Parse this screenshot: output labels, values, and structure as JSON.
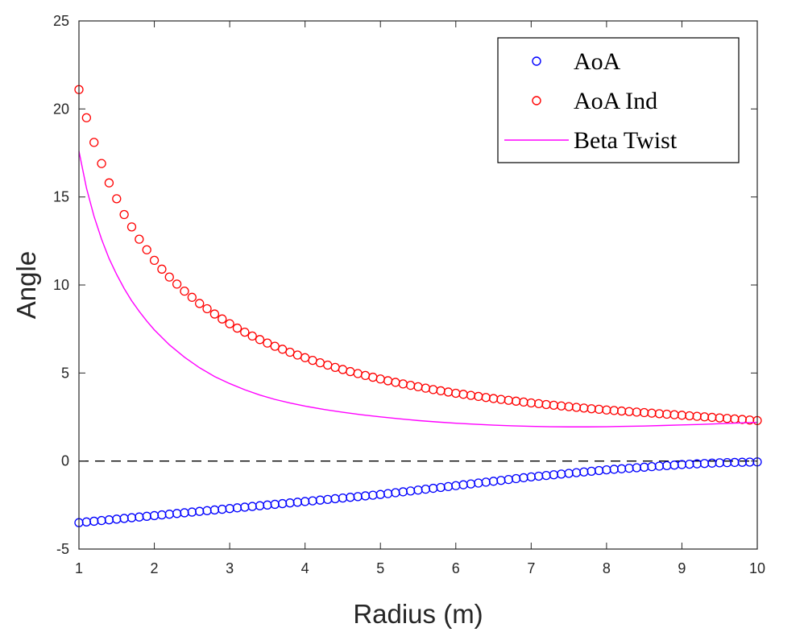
{
  "chart_data": {
    "type": "scatter",
    "title": "",
    "xlabel": "Radius (m)",
    "ylabel": "Angle",
    "xlim": [
      1,
      10
    ],
    "ylim": [
      -5,
      25
    ],
    "xticks": [
      1,
      2,
      3,
      4,
      5,
      6,
      7,
      8,
      9,
      10
    ],
    "yticks": [
      -5,
      0,
      5,
      10,
      15,
      20,
      25
    ],
    "xtick_labels": [
      "1",
      "2",
      "3",
      "4",
      "5",
      "6",
      "7",
      "8",
      "9",
      "10"
    ],
    "ytick_labels": [
      "-5",
      "0",
      "5",
      "10",
      "15",
      "20",
      "25"
    ],
    "grid": false,
    "legend_position": "top-right",
    "reference_line": {
      "y": 0,
      "style": "dashed",
      "color": "#000000"
    },
    "series": [
      {
        "name": "AoA",
        "kind": "scatter",
        "marker": "circle",
        "color": "#0000ff",
        "x": [
          1.0,
          1.1,
          1.2,
          1.3,
          1.4,
          1.5,
          1.6,
          1.7,
          1.8,
          1.9,
          2.0,
          2.1,
          2.2,
          2.3,
          2.4,
          2.5,
          2.6,
          2.7,
          2.8,
          2.9,
          3.0,
          3.1,
          3.2,
          3.3,
          3.4,
          3.5,
          3.6,
          3.7,
          3.8,
          3.9,
          4.0,
          4.1,
          4.2,
          4.3,
          4.4,
          4.5,
          4.6,
          4.7,
          4.8,
          4.9,
          5.0,
          5.1,
          5.2,
          5.3,
          5.4,
          5.5,
          5.6,
          5.7,
          5.8,
          5.9,
          6.0,
          6.1,
          6.2,
          6.3,
          6.4,
          6.5,
          6.6,
          6.7,
          6.8,
          6.9,
          7.0,
          7.1,
          7.2,
          7.3,
          7.4,
          7.5,
          7.6,
          7.7,
          7.8,
          7.9,
          8.0,
          8.1,
          8.2,
          8.3,
          8.4,
          8.5,
          8.6,
          8.7,
          8.8,
          8.9,
          9.0,
          9.1,
          9.2,
          9.3,
          9.4,
          9.5,
          9.6,
          9.7,
          9.8,
          9.9,
          10.0
        ],
        "y": [
          -3.5,
          -3.46,
          -3.42,
          -3.38,
          -3.34,
          -3.3,
          -3.26,
          -3.22,
          -3.18,
          -3.14,
          -3.1,
          -3.06,
          -3.02,
          -2.98,
          -2.94,
          -2.9,
          -2.86,
          -2.82,
          -2.78,
          -2.74,
          -2.7,
          -2.66,
          -2.62,
          -2.58,
          -2.54,
          -2.5,
          -2.46,
          -2.42,
          -2.38,
          -2.34,
          -2.3,
          -2.26,
          -2.22,
          -2.18,
          -2.14,
          -2.1,
          -2.06,
          -2.02,
          -1.98,
          -1.94,
          -1.9,
          -1.85,
          -1.8,
          -1.75,
          -1.7,
          -1.65,
          -1.6,
          -1.55,
          -1.5,
          -1.45,
          -1.4,
          -1.35,
          -1.3,
          -1.25,
          -1.2,
          -1.15,
          -1.1,
          -1.05,
          -1.0,
          -0.95,
          -0.9,
          -0.86,
          -0.82,
          -0.78,
          -0.74,
          -0.7,
          -0.66,
          -0.62,
          -0.58,
          -0.54,
          -0.5,
          -0.47,
          -0.44,
          -0.41,
          -0.38,
          -0.35,
          -0.32,
          -0.29,
          -0.26,
          -0.23,
          -0.2,
          -0.18,
          -0.16,
          -0.14,
          -0.12,
          -0.1,
          -0.09,
          -0.08,
          -0.07,
          -0.06,
          -0.05
        ]
      },
      {
        "name": "AoA Ind",
        "kind": "scatter",
        "marker": "circle",
        "color": "#ff0000",
        "x": [
          1.0,
          1.1,
          1.2,
          1.3,
          1.4,
          1.5,
          1.6,
          1.7,
          1.8,
          1.9,
          2.0,
          2.1,
          2.2,
          2.3,
          2.4,
          2.5,
          2.6,
          2.7,
          2.8,
          2.9,
          3.0,
          3.1,
          3.2,
          3.3,
          3.4,
          3.5,
          3.6,
          3.7,
          3.8,
          3.9,
          4.0,
          4.1,
          4.2,
          4.3,
          4.4,
          4.5,
          4.6,
          4.7,
          4.8,
          4.9,
          5.0,
          5.1,
          5.2,
          5.3,
          5.4,
          5.5,
          5.6,
          5.7,
          5.8,
          5.9,
          6.0,
          6.1,
          6.2,
          6.3,
          6.4,
          6.5,
          6.6,
          6.7,
          6.8,
          6.9,
          7.0,
          7.1,
          7.2,
          7.3,
          7.4,
          7.5,
          7.6,
          7.7,
          7.8,
          7.9,
          8.0,
          8.1,
          8.2,
          8.3,
          8.4,
          8.5,
          8.6,
          8.7,
          8.8,
          8.9,
          9.0,
          9.1,
          9.2,
          9.3,
          9.4,
          9.5,
          9.6,
          9.7,
          9.8,
          9.9,
          10.0
        ],
        "y": [
          21.1,
          19.5,
          18.1,
          16.9,
          15.8,
          14.9,
          14.0,
          13.3,
          12.6,
          12.0,
          11.4,
          10.9,
          10.45,
          10.05,
          9.65,
          9.3,
          8.95,
          8.65,
          8.35,
          8.07,
          7.8,
          7.55,
          7.32,
          7.1,
          6.9,
          6.7,
          6.52,
          6.35,
          6.18,
          6.02,
          5.87,
          5.72,
          5.58,
          5.45,
          5.32,
          5.2,
          5.08,
          4.97,
          4.86,
          4.76,
          4.66,
          4.56,
          4.47,
          4.38,
          4.3,
          4.22,
          4.14,
          4.06,
          3.99,
          3.92,
          3.85,
          3.79,
          3.73,
          3.67,
          3.61,
          3.55,
          3.5,
          3.45,
          3.4,
          3.35,
          3.3,
          3.26,
          3.21,
          3.17,
          3.13,
          3.09,
          3.05,
          3.01,
          2.97,
          2.94,
          2.9,
          2.87,
          2.84,
          2.81,
          2.78,
          2.75,
          2.72,
          2.69,
          2.66,
          2.63,
          2.6,
          2.57,
          2.54,
          2.51,
          2.48,
          2.45,
          2.42,
          2.39,
          2.36,
          2.33,
          2.3
        ]
      },
      {
        "name": "Beta Twist",
        "kind": "line",
        "color": "#ff00ff",
        "x": [
          1.0,
          1.1,
          1.2,
          1.3,
          1.4,
          1.5,
          1.6,
          1.7,
          1.8,
          1.9,
          2.0,
          2.2,
          2.4,
          2.6,
          2.8,
          3.0,
          3.2,
          3.4,
          3.6,
          3.8,
          4.0,
          4.25,
          4.5,
          4.75,
          5.0,
          5.25,
          5.5,
          5.75,
          6.0,
          6.25,
          6.5,
          6.75,
          7.0,
          7.25,
          7.5,
          7.75,
          8.0,
          8.25,
          8.5,
          8.75,
          9.0,
          9.25,
          9.5,
          9.75,
          10.0
        ],
        "y": [
          17.6,
          15.5,
          13.9,
          12.6,
          11.5,
          10.6,
          9.8,
          9.1,
          8.5,
          7.95,
          7.45,
          6.6,
          5.9,
          5.3,
          4.8,
          4.4,
          4.05,
          3.75,
          3.5,
          3.3,
          3.12,
          2.93,
          2.77,
          2.63,
          2.51,
          2.4,
          2.3,
          2.22,
          2.15,
          2.09,
          2.04,
          2.0,
          1.97,
          1.95,
          1.94,
          1.94,
          1.95,
          1.97,
          1.99,
          2.02,
          2.05,
          2.08,
          2.12,
          2.16,
          2.2
        ]
      }
    ]
  }
}
